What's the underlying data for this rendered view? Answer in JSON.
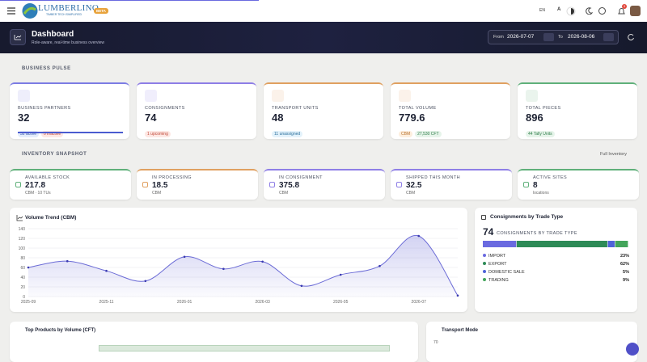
{
  "topbar": {
    "brand": "LUMBERLINQ",
    "tagline": "TIMBER TECH SIMPLIFIED",
    "badge": "BETA",
    "language": "EN",
    "font_toggle": "A",
    "notifications": "3"
  },
  "header": {
    "title": "Dashboard",
    "subtitle": "Role-aware, real-time business overview",
    "from_label": "From",
    "from_date": "2026-07-07",
    "to_label": "To",
    "to_date": "2026-08-06"
  },
  "business_pulse": {
    "title": "BUSINESS PULSE",
    "cards": [
      {
        "label": "BUSINESS PARTNERS",
        "value": "32",
        "chips": [
          "32 active",
          "0 inactive"
        ],
        "accent": "#7c7ce4"
      },
      {
        "label": "CONSIGNMENTS",
        "value": "74",
        "chips": [
          "1 upcoming"
        ],
        "accent": "#8e7ee6"
      },
      {
        "label": "TRANSPORT UNITS",
        "value": "48",
        "chips": [
          "11 unassigned"
        ],
        "accent": "#e0a060"
      },
      {
        "label": "TOTAL VOLUME",
        "value": "779.6",
        "chips": [
          "CBM",
          "27,530 CFT"
        ],
        "accent": "#e0a060"
      },
      {
        "label": "TOTAL PIECES",
        "value": "896",
        "chips": [
          "44 Tally Units"
        ],
        "accent": "#5fb07a"
      }
    ]
  },
  "inventory_snapshot": {
    "title": "INVENTORY SNAPSHOT",
    "link": "Full Inventory",
    "cards": [
      {
        "label": "AVAILABLE STOCK",
        "value": "217.8",
        "unit": "CBM · 10 TUs",
        "accent": "#5fb07a"
      },
      {
        "label": "IN PROCESSING",
        "value": "18.5",
        "unit": "CBM",
        "accent": "#e0a060"
      },
      {
        "label": "IN CONSIGNMENT",
        "value": "375.8",
        "unit": "CBM",
        "accent": "#8e7ee6"
      },
      {
        "label": "SHIPPED THIS MONTH",
        "value": "32.5",
        "unit": "CBM",
        "accent": "#8e7ee6"
      },
      {
        "label": "ACTIVE SITES",
        "value": "8",
        "unit": "locations",
        "accent": "#5fb07a"
      }
    ]
  },
  "panels": {
    "top_products": {
      "title": "Top Products by Volume (CFT)"
    },
    "transport_mode": {
      "title": "Transport Mode",
      "axis_top": "70"
    }
  },
  "chart_data": [
    {
      "type": "line",
      "title": "Volume Trend (CBM)",
      "categories": [
        "2025-09",
        null,
        "2025-11",
        null,
        "2026-01",
        null,
        "2026-03",
        null,
        "2026-05",
        null,
        "2026-07",
        null
      ],
      "values": [
        60,
        73,
        53,
        32,
        82,
        57,
        72,
        22,
        45,
        63,
        125,
        2
      ],
      "color": "#6b6bd6",
      "ylim": [
        0,
        140
      ],
      "yticks": [
        0,
        20,
        40,
        60,
        80,
        100,
        120,
        140
      ],
      "grid": true
    },
    {
      "type": "stacked-bar",
      "title": "Consignments by Trade Type",
      "total": "74",
      "subtitle": "CONSIGNMENTS BY TRADE TYPE",
      "categories": [
        "IMPORT",
        "EXPORT",
        "DOMESTIC SALE",
        "TRADING"
      ],
      "values": [
        23,
        62,
        5,
        9
      ],
      "value_labels": [
        "23%",
        "62%",
        "5%",
        "9%"
      ],
      "colors": [
        "#6a6ae0",
        "#2e8b57",
        "#4f63d8",
        "#43a55a"
      ]
    }
  ]
}
